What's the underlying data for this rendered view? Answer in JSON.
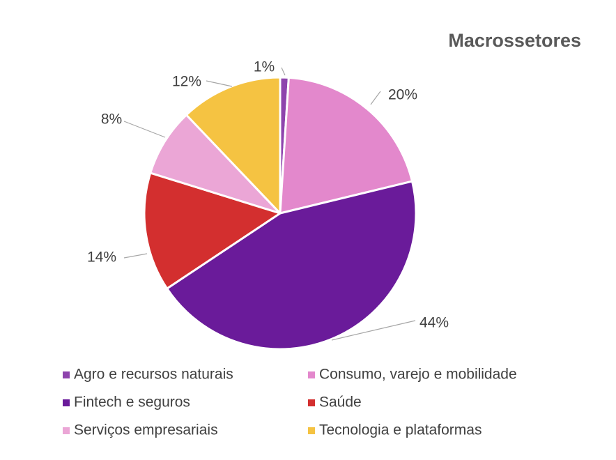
{
  "chart_data": {
    "type": "pie",
    "title": "Macrossetores",
    "slices": [
      {
        "label": "Agro e recursos naturais",
        "value": 1,
        "display": "1%",
        "color": "#8e44ad"
      },
      {
        "label": "Consumo, varejo e mobilidade",
        "value": 20,
        "display": "20%",
        "color": "#e388cc"
      },
      {
        "label": "Fintech e seguros",
        "value": 44,
        "display": "44%",
        "color": "#6a1b9a"
      },
      {
        "label": "Saúde",
        "value": 14,
        "display": "14%",
        "color": "#d32f2f"
      },
      {
        "label": "Serviços empresariais",
        "value": 8,
        "display": "8%",
        "color": "#eba6d6"
      },
      {
        "label": "Tecnologia e plataformas",
        "value": 12,
        "display": "12%",
        "color": "#f5c342"
      }
    ],
    "start_angle_deg": 0,
    "direction": "clockwise",
    "legend_position": "bottom"
  }
}
